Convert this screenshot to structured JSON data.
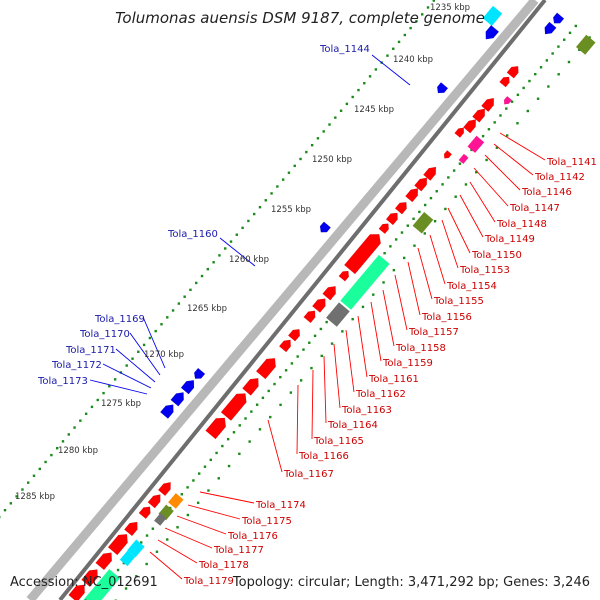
{
  "title": "Tolumonas auensis DSM 9187, complete genome",
  "accession": "Accession: NC_012691",
  "topology": "Topology: circular; Length: 3,471,292 bp; Genes: 3,246",
  "colors": {
    "cds": "#ff0000",
    "rrna": "#1aff9c",
    "trna": "#00e5ff",
    "blue_cds": "#0000ee",
    "other": "#6b8e23",
    "orange": "#ff8c00",
    "pink": "#ff1493",
    "grey": "#707070",
    "gc_dots": "#1a8a1a"
  },
  "ticks": [
    "1235 kbp",
    "1240 kbp",
    "1245 kbp",
    "1250 kbp",
    "1255 kbp",
    "1260 kbp",
    "1265 kbp",
    "1270 kbp",
    "1275 kbp",
    "1280 kbp",
    "1285 kbp"
  ],
  "blue_labels": [
    "Tola_1144",
    "Tola_1160",
    "Tola_1169",
    "Tola_1170",
    "Tola_1171",
    "Tola_1172",
    "Tola_1173"
  ],
  "red_labels": [
    "Tola_1141",
    "Tola_1142",
    "Tola_1146",
    "Tola_1147",
    "Tola_1148",
    "Tola_1149",
    "Tola_1150",
    "Tola_1153",
    "Tola_1154",
    "Tola_1155",
    "Tola_1156",
    "Tola_1157",
    "Tola_1158",
    "Tola_1159",
    "Tola_1161",
    "Tola_1162",
    "Tola_1163",
    "Tola_1164",
    "Tola_1165",
    "Tola_1166",
    "Tola_1167",
    "Tola_1174",
    "Tola_1175",
    "Tola_1176",
    "Tola_1177",
    "Tola_1178",
    "Tola_1179"
  ]
}
